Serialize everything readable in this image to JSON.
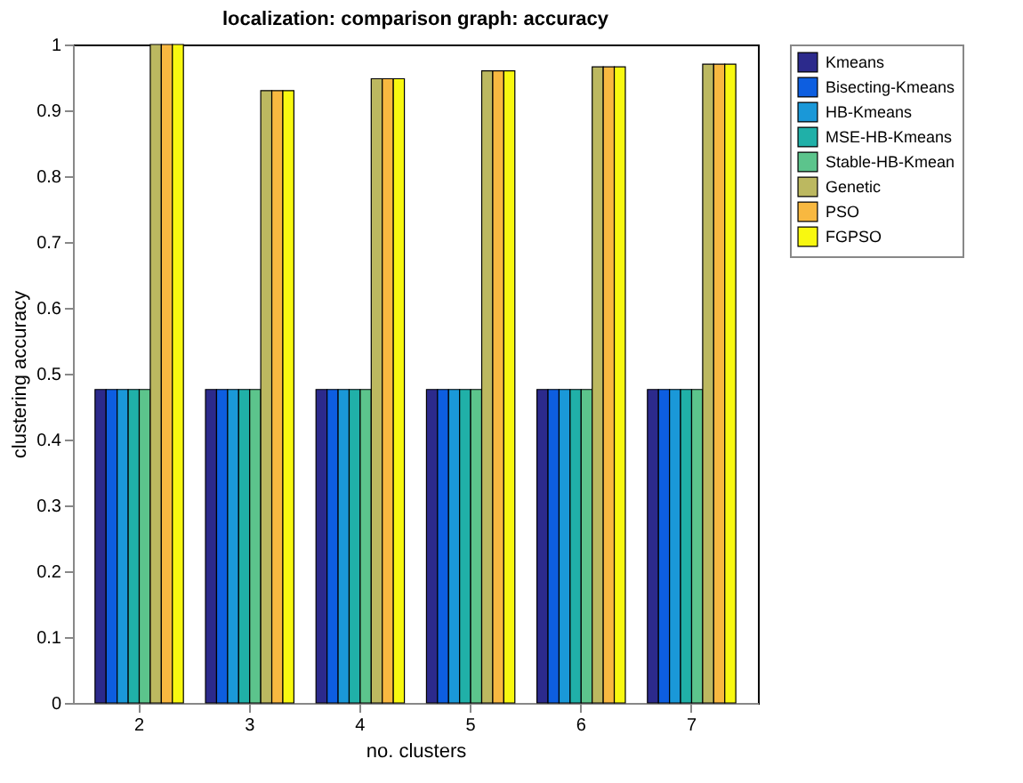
{
  "chart_data": {
    "type": "bar",
    "title": "localization: comparison graph: accuracy",
    "xlabel": "no. clusters",
    "ylabel": "clustering accuracy",
    "categories": [
      "2",
      "3",
      "4",
      "5",
      "6",
      "7"
    ],
    "series": [
      {
        "name": "Kmeans",
        "color": "#2c2a8c",
        "values": [
          0.476,
          0.476,
          0.476,
          0.476,
          0.476,
          0.476
        ]
      },
      {
        "name": "Bisecting-Kmeans",
        "color": "#0d5ee0",
        "values": [
          0.476,
          0.476,
          0.476,
          0.476,
          0.476,
          0.476
        ]
      },
      {
        "name": "HB-Kmeans",
        "color": "#1a98d8",
        "values": [
          0.476,
          0.476,
          0.476,
          0.476,
          0.476,
          0.476
        ]
      },
      {
        "name": "MSE-HB-Kmeans",
        "color": "#20b0a8",
        "values": [
          0.476,
          0.476,
          0.476,
          0.476,
          0.476,
          0.476
        ]
      },
      {
        "name": "Stable-HB-Kmean",
        "color": "#5cc48c",
        "values": [
          0.476,
          0.476,
          0.476,
          0.476,
          0.476,
          0.476
        ]
      },
      {
        "name": "Genetic",
        "color": "#bcb860",
        "values": [
          1.0,
          0.93,
          0.948,
          0.96,
          0.966,
          0.97
        ]
      },
      {
        "name": "PSO",
        "color": "#f8b840",
        "values": [
          1.0,
          0.93,
          0.948,
          0.96,
          0.966,
          0.97
        ]
      },
      {
        "name": "FGPSO",
        "color": "#f8f810",
        "values": [
          1.0,
          0.93,
          0.948,
          0.96,
          0.966,
          0.97
        ]
      }
    ],
    "ylim": [
      0,
      1
    ],
    "yticks": [
      0,
      0.1,
      0.2,
      0.3,
      0.4,
      0.5,
      0.6,
      0.7,
      0.8,
      0.9,
      1
    ],
    "grid": false,
    "legend": "top right"
  }
}
